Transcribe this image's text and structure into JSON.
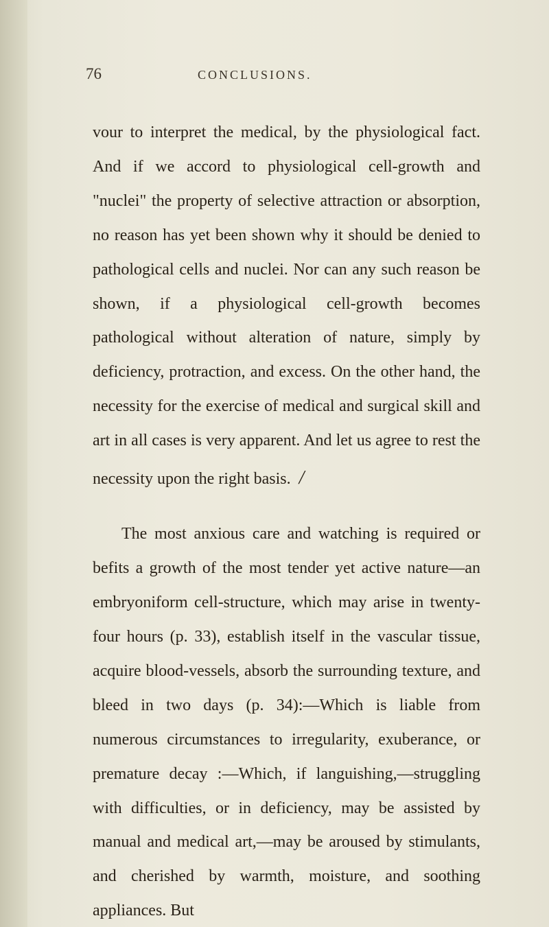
{
  "page": {
    "number": "76",
    "chapter_title": "CONCLUSIONS.",
    "paragraphs": {
      "p1": "vour to interpret the medical, by the physiological fact. And if we accord to physiological cell-growth and \"nuclei\" the property of selective attraction or absorption, no reason has yet been shown why it should be denied to pathological cells and nuclei. Nor can any such reason be shown, if a physiological cell-growth becomes pathological without alteration of nature, simply by deficiency, protraction, and excess. On the other hand, the necessity for the exercise of medical and surgical skill and art in all cases is very apparent. And let us agree to rest the necessity upon the right basis.",
      "p2": "The most anxious care and watching is required or befits a growth of the most tender yet active nature—an embryoniform cell-structure, which may arise in twenty-four hours (p. 33), establish itself in the vascular tissue, acquire blood-vessels, absorb the surrounding texture, and bleed in two days (p. 34):—Which is liable from numerous circumstances to irregularity, exuberance, or premature decay :—Which, if languishing,—struggling with difficulties, or in deficiency, may be assisted by manual and medical art,—may be aroused by stimulants, and cherished by warmth, moisture, and soothing appliances. But"
    },
    "colors": {
      "background": "#e8e6d8",
      "text": "#2a2218",
      "header_text": "#3a3228"
    },
    "typography": {
      "body_font_size": 24,
      "body_line_height": 2.08,
      "page_number_size": 23,
      "title_size": 18,
      "title_letter_spacing": 3
    }
  }
}
